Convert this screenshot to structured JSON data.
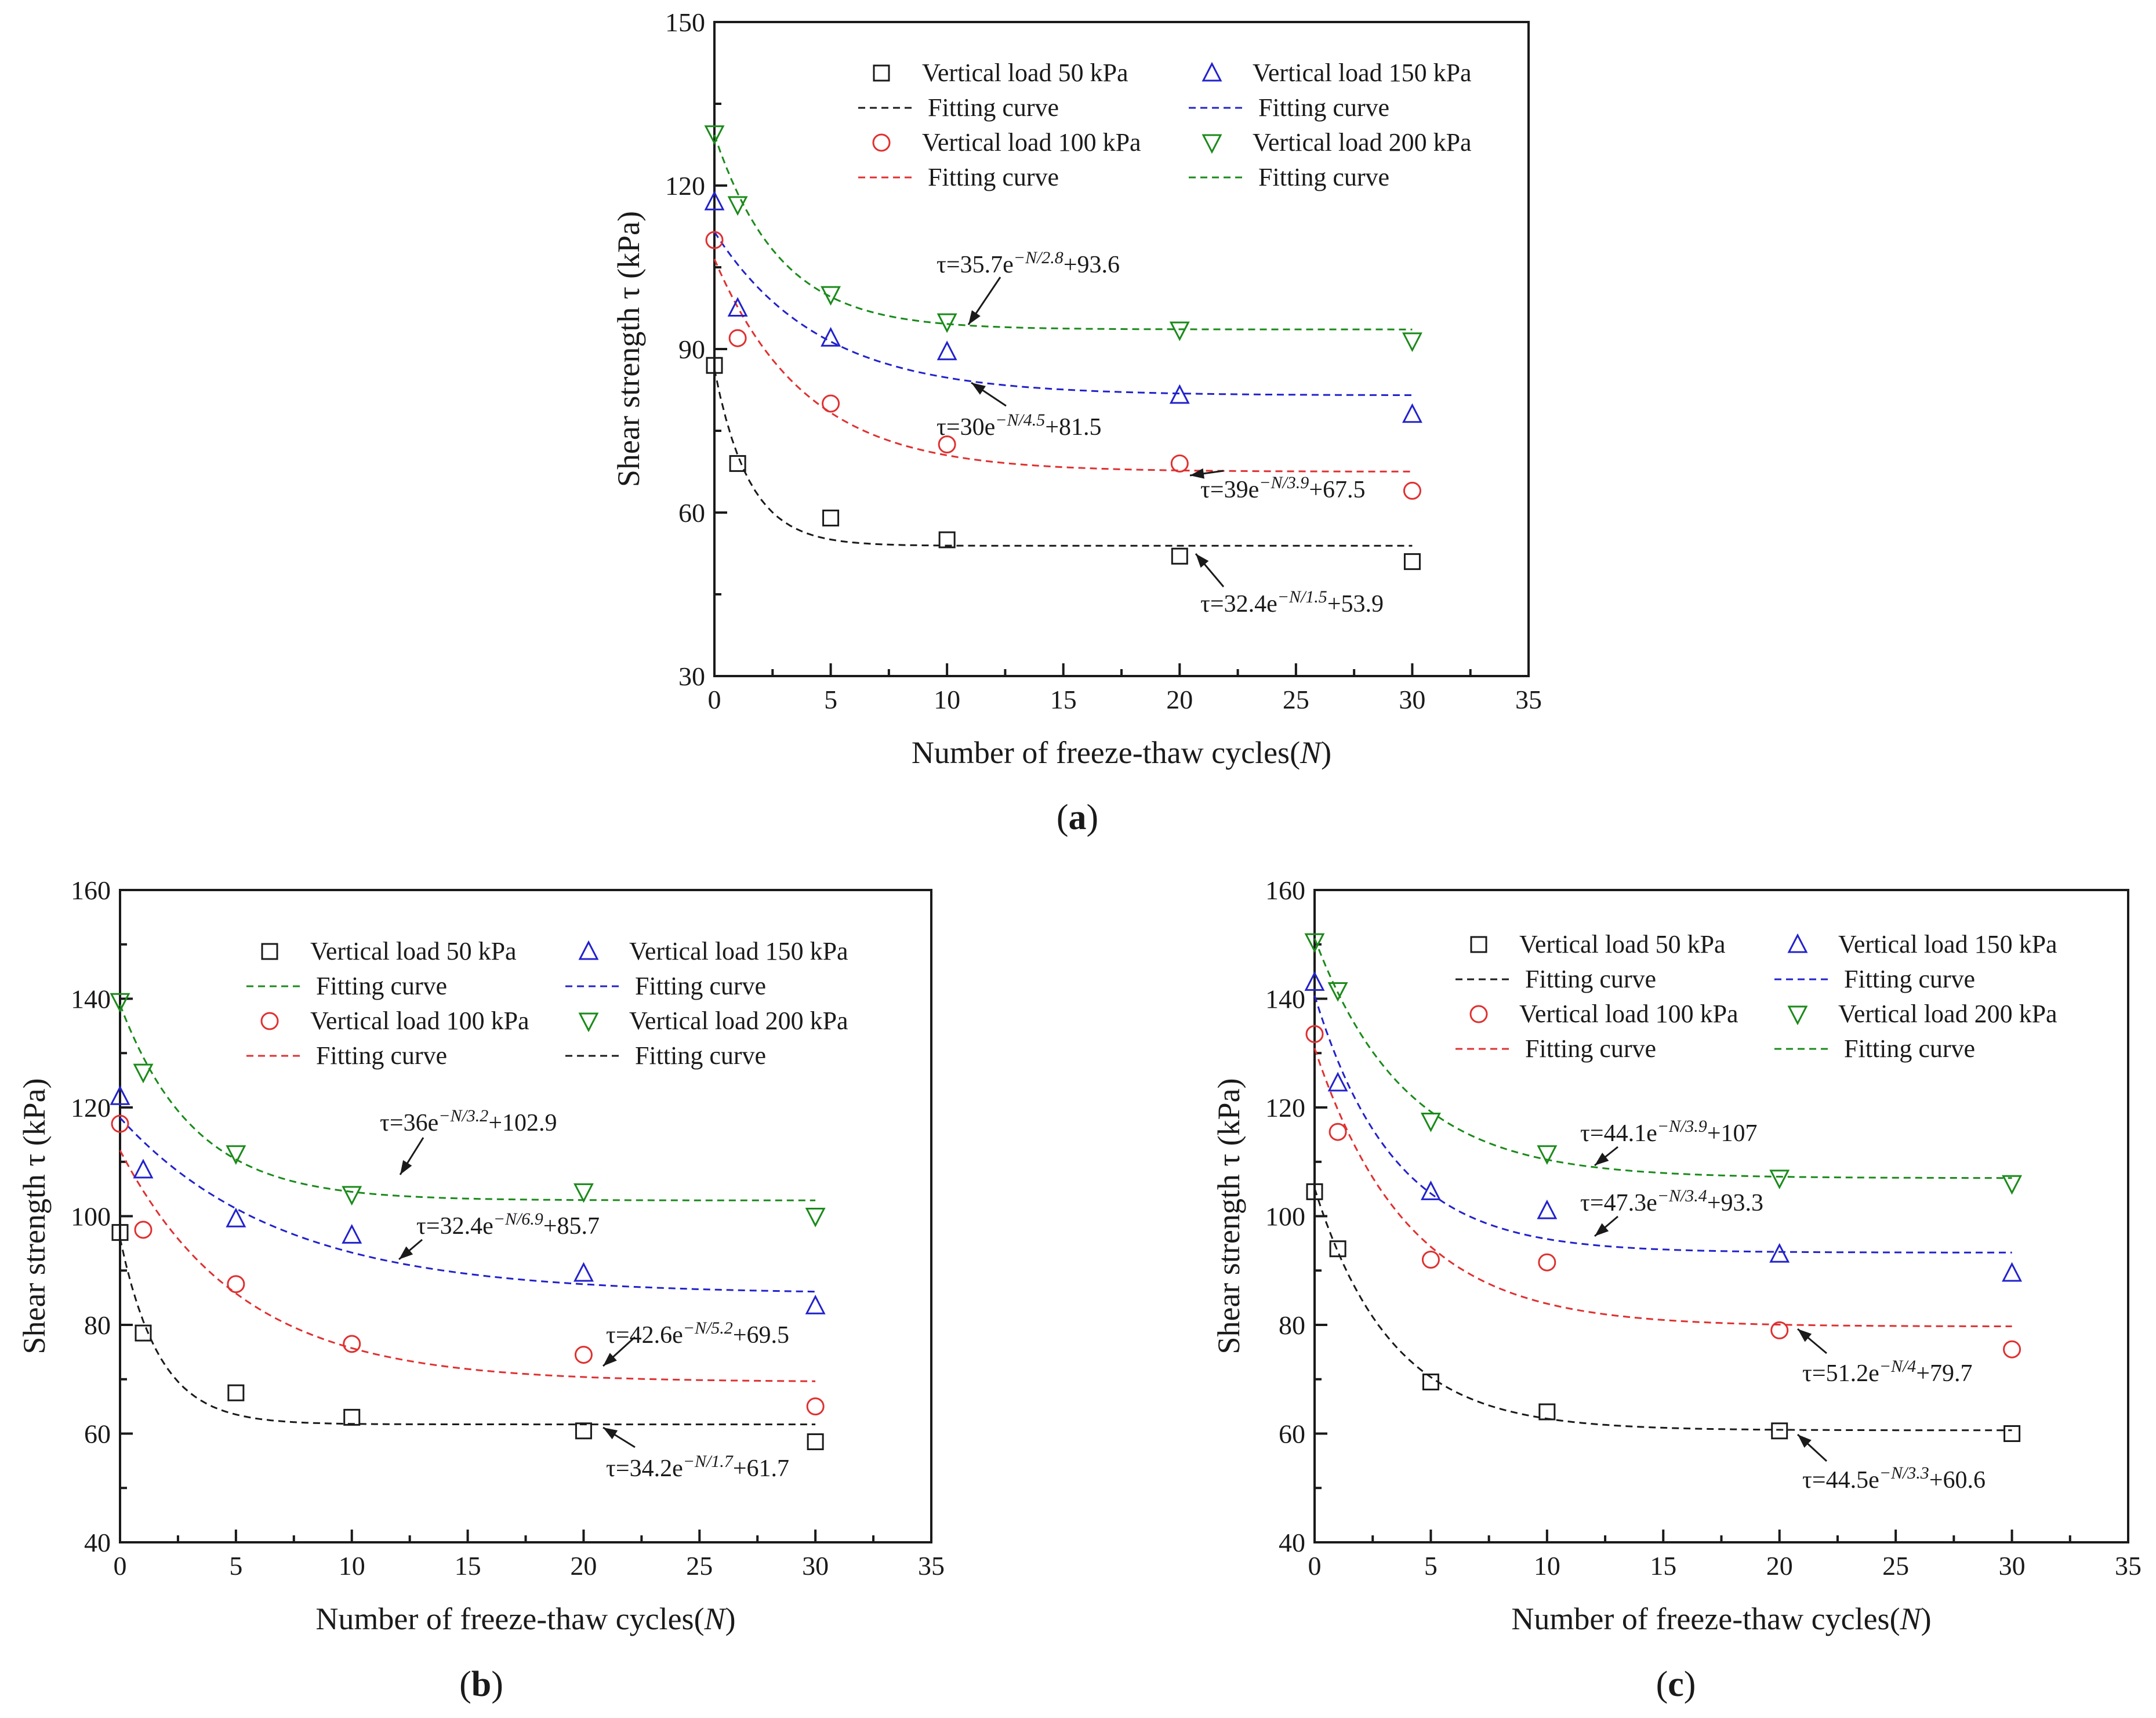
{
  "chart_data": [
    {
      "type": "scatter",
      "panel_label": "a",
      "xlabel": "Number of freeze-thaw cycles",
      "xlabel_var": "N",
      "ylabel": "Shear strength τ (kPa)",
      "xlim": [
        0,
        35
      ],
      "ylim": [
        30,
        150
      ],
      "xticks": [
        0,
        5,
        10,
        15,
        20,
        25,
        30,
        35
      ],
      "yticks": [
        30,
        60,
        90,
        120,
        150
      ],
      "x": [
        0,
        1,
        5,
        10,
        20,
        30
      ],
      "series": [
        {
          "name": "Vertical load 50 kPa",
          "marker": "square",
          "color": "#1a1a1a",
          "values": [
            87,
            69,
            59,
            55,
            52,
            51
          ],
          "fit": {
            "label": "Fitting curve",
            "color": "#1a1a1a",
            "A": 32.4,
            "B": 1.5,
            "C": 53.9,
            "equation": "τ=32.4e^(−N/1.5)+53.9"
          }
        },
        {
          "name": "Vertical load 150 kPa",
          "marker": "triangle-up",
          "color": "#2222cc",
          "values": [
            117,
            97.5,
            92,
            89.5,
            81.5,
            78
          ],
          "fit": {
            "label": "Fitting curve",
            "color": "#2222cc",
            "A": 30,
            "B": 4.5,
            "C": 81.5,
            "equation": "τ=30e^(−N/4.5)+81.5"
          }
        },
        {
          "name": "Vertical load 100 kPa",
          "marker": "circle",
          "color": "#e03030",
          "values": [
            110,
            92,
            80,
            72.5,
            69,
            64
          ],
          "fit": {
            "label": "Fitting curve",
            "color": "#e03030",
            "A": 39,
            "B": 3.9,
            "C": 67.5,
            "equation": "τ=39e^(−N/3.9)+67.5"
          }
        },
        {
          "name": "Vertical load 200 kPa",
          "marker": "triangle-down",
          "color": "#1a8a1a",
          "values": [
            129.5,
            116.5,
            100,
            95,
            93.5,
            91.5
          ],
          "fit": {
            "label": "Fitting curve",
            "color": "#1a8a1a",
            "A": 35.7,
            "B": 2.8,
            "C": 93.6,
            "equation": "τ=35.7e^(−N/2.8)+93.6"
          }
        }
      ]
    },
    {
      "type": "scatter",
      "panel_label": "b",
      "xlabel": "Number of freeze-thaw cycles",
      "xlabel_var": "N",
      "ylabel": "Shear strength τ (kPa)",
      "xlim": [
        0,
        35
      ],
      "ylim": [
        40,
        160
      ],
      "xticks": [
        0,
        5,
        10,
        15,
        20,
        25,
        30,
        35
      ],
      "yticks": [
        40,
        60,
        80,
        100,
        120,
        140,
        160
      ],
      "x": [
        0,
        1,
        5,
        10,
        20,
        30
      ],
      "series": [
        {
          "name": "Vertical load 50 kPa",
          "marker": "square",
          "color": "#1a1a1a",
          "values": [
            97,
            78.5,
            67.5,
            63,
            60.5,
            58.5
          ],
          "fit": {
            "label": "Fitting curve",
            "color": "#1a8a1a",
            "linecolor": "#1a1a1a",
            "A": 34.2,
            "B": 1.7,
            "C": 61.7,
            "equation": "τ=34.2e^(−N/1.7)+61.7"
          }
        },
        {
          "name": "Vertical load 150 kPa",
          "marker": "triangle-up",
          "color": "#2222cc",
          "values": [
            122,
            108.5,
            99.5,
            96.5,
            89.5,
            83.5
          ],
          "fit": {
            "label": "Fitting curve",
            "color": "#2222cc",
            "A": 32.4,
            "B": 6.9,
            "C": 85.7,
            "equation": "τ=32.4e^(−N/6.9)+85.7"
          }
        },
        {
          "name": "Vertical load 100 kPa",
          "marker": "circle",
          "color": "#e03030",
          "values": [
            117,
            97.5,
            87.5,
            76.5,
            74.5,
            65
          ],
          "fit": {
            "label": "Fitting curve",
            "color": "#e03030",
            "A": 42.6,
            "B": 5.2,
            "C": 69.5,
            "equation": "τ=42.6e^(−N/5.2)+69.5"
          }
        },
        {
          "name": "Vertical load 200 kPa",
          "marker": "triangle-down",
          "color": "#1a8a1a",
          "values": [
            139.5,
            126.5,
            111.5,
            104,
            104.5,
            100
          ],
          "fit": {
            "label": "Fitting curve",
            "color": "#1a1a1a",
            "linecolor": "#1a8a1a",
            "A": 36,
            "B": 3.2,
            "C": 102.9,
            "equation": "τ=36e^(−N/3.2)+102.9"
          }
        }
      ]
    },
    {
      "type": "scatter",
      "panel_label": "c",
      "xlabel": "Number of freeze-thaw cycles",
      "xlabel_var": "N",
      "ylabel": "Shear strength τ (kPa)",
      "xlim": [
        0,
        35
      ],
      "ylim": [
        40,
        160
      ],
      "xticks": [
        0,
        5,
        10,
        15,
        20,
        25,
        30,
        35
      ],
      "yticks": [
        40,
        60,
        80,
        100,
        120,
        140,
        160
      ],
      "x": [
        0,
        1,
        5,
        10,
        20,
        30
      ],
      "series": [
        {
          "name": "Vertical load 50 kPa",
          "marker": "square",
          "color": "#1a1a1a",
          "values": [
            104.5,
            94,
            69.5,
            64,
            60.5,
            60
          ],
          "fit": {
            "label": "Fitting curve",
            "color": "#1a1a1a",
            "A": 44.5,
            "B": 3.3,
            "C": 60.6,
            "equation": "τ=44.5e^(−N/3.3)+60.6"
          }
        },
        {
          "name": "Vertical load 150 kPa",
          "marker": "triangle-up",
          "color": "#2222cc",
          "values": [
            143,
            124.5,
            104.5,
            101,
            93,
            89.5
          ],
          "fit": {
            "label": "Fitting curve",
            "color": "#2222cc",
            "A": 47.3,
            "B": 3.4,
            "C": 93.3,
            "equation": "τ=47.3e^(−N/3.4)+93.3"
          }
        },
        {
          "name": "Vertical load 100 kPa",
          "marker": "circle",
          "color": "#e03030",
          "values": [
            133.5,
            115.5,
            92,
            91.5,
            79,
            75.5
          ],
          "fit": {
            "label": "Fitting curve",
            "color": "#e03030",
            "A": 51.2,
            "B": 4,
            "C": 79.7,
            "equation": "τ=51.2e^(−N/4)+79.7"
          }
        },
        {
          "name": "Vertical load 200 kPa",
          "marker": "triangle-down",
          "color": "#1a8a1a",
          "values": [
            150.5,
            141.5,
            117.5,
            111.5,
            107,
            106
          ],
          "fit": {
            "label": "Fitting curve",
            "color": "#1a8a1a",
            "A": 44.1,
            "B": 3.9,
            "C": 107,
            "equation": "τ=44.1e^(−N/3.9)+107"
          }
        }
      ]
    }
  ]
}
